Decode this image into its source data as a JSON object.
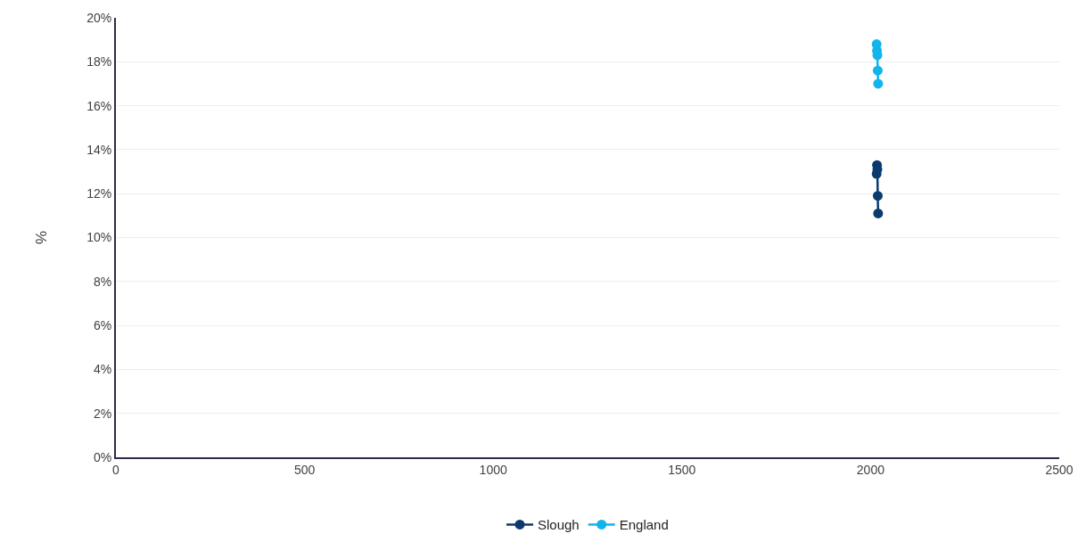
{
  "chart_data": {
    "type": "line",
    "ylabel": "%",
    "x": [
      2016,
      2017,
      2018,
      2019,
      2020
    ],
    "series": [
      {
        "name": "Slough",
        "color": "#0b3a6e",
        "values": [
          12.9,
          13.3,
          13.1,
          11.9,
          11.1
        ]
      },
      {
        "name": "England",
        "color": "#12b4ec",
        "values": [
          18.8,
          18.5,
          18.3,
          17.6,
          17.0
        ]
      }
    ],
    "xlim": [
      0,
      2500
    ],
    "xticks": [
      0,
      500,
      1000,
      1500,
      2000,
      2500
    ],
    "ylim": [
      0,
      20
    ],
    "yticks": [
      {
        "value": 0,
        "label": "0%"
      },
      {
        "value": 2,
        "label": "2%"
      },
      {
        "value": 4,
        "label": "4%"
      },
      {
        "value": 6,
        "label": "6%"
      },
      {
        "value": 8,
        "label": "8%"
      },
      {
        "value": 10,
        "label": "10%"
      },
      {
        "value": 12,
        "label": "12%"
      },
      {
        "value": 14,
        "label": "14%"
      },
      {
        "value": 16,
        "label": "16%"
      },
      {
        "value": 18,
        "label": "18%"
      },
      {
        "value": 20,
        "label": "20%"
      }
    ],
    "grid": "y",
    "legend": "bottom",
    "marker": "circle",
    "line_style": "solid"
  }
}
